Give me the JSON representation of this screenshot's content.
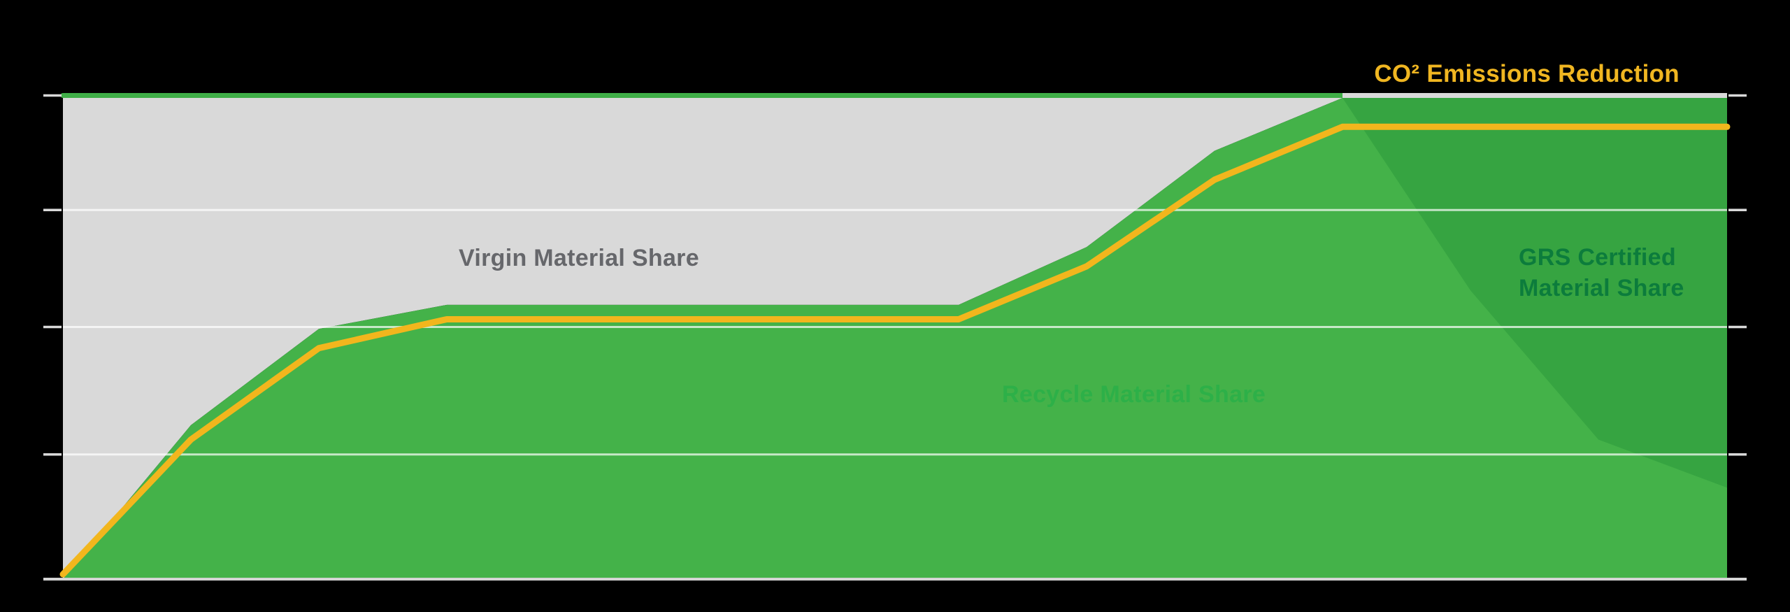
{
  "page": {
    "background": "#000000",
    "description": "Stacked share area chart on black background, no axis value labels, inline series annotations"
  },
  "labels": {
    "virgin": "Virgin Material Share",
    "recycle": "Recycle Material Share",
    "grs_line1": "GRS Certified",
    "grs_line2": "Material Share",
    "co2_title": "CO² Emissions Reduction"
  },
  "colors": {
    "background": "#000000",
    "virgin_area": "#d9d9d9",
    "recycle_area": "#44b249",
    "grs_area": "#36a441",
    "co2_line": "#f2b61d",
    "virgin_text": "#66676b",
    "recycle_text": "#2db048",
    "grs_text": "#0c7c3c",
    "title_text": "#f0b621",
    "gridline": "rgba(255,255,255,0.7)",
    "tick": "#d9d9d9",
    "baseline": "#d4d4d4",
    "top_border_left": "#3fae47",
    "top_border_right": "#d9d9d9"
  },
  "chart_data": {
    "type": "area",
    "title": "CO² Emissions Reduction",
    "xlabel": "",
    "ylabel": "",
    "x": [
      0,
      1,
      2,
      3,
      4,
      5,
      6,
      7,
      8,
      9,
      10,
      11,
      12,
      13
    ],
    "x_tick_labels": [],
    "ylim": [
      0,
      100
    ],
    "y_ticks_pct": [
      100,
      76.7,
      52.4,
      25.9,
      0
    ],
    "y_tick_labels": [],
    "grid": true,
    "legend_position": "inline-annotations",
    "series": [
      {
        "name": "Virgin Material Share",
        "type": "area",
        "color": "#d9d9d9",
        "values": [
          100,
          68,
          48,
          43,
          43,
          43,
          43,
          43,
          31,
          11,
          0,
          0,
          0,
          0
        ],
        "note": "fills from recycle boundary up to 100%"
      },
      {
        "name": "Recycle Material Share",
        "type": "area",
        "color": "#44b249",
        "values": [
          0,
          32,
          52,
          57,
          57,
          57,
          57,
          57,
          69,
          89,
          100,
          100,
          100,
          100
        ]
      },
      {
        "name": "GRS Certified Material Share",
        "type": "area",
        "color": "#36a441",
        "values": [
          0,
          0,
          0,
          0,
          0,
          0,
          0,
          0,
          0,
          0,
          0,
          40,
          71,
          81
        ],
        "note": "dark green overlay hanging from top of recycle area on right side"
      },
      {
        "name": "CO² Emissions Reduction",
        "type": "line",
        "color": "#f2b61d",
        "values": [
          1,
          29,
          48,
          54,
          54,
          54,
          54,
          54,
          65,
          83,
          94,
          94,
          94,
          94
        ]
      }
    ]
  }
}
